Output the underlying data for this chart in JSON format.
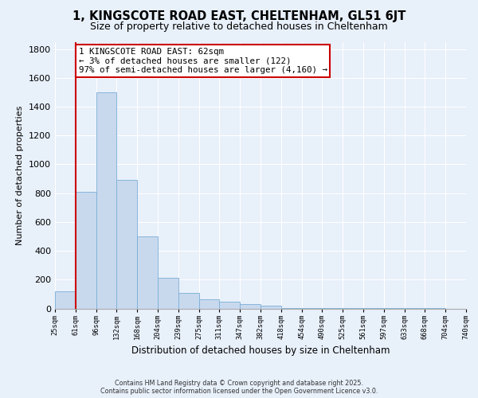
{
  "title": "1, KINGSCOTE ROAD EAST, CHELTENHAM, GL51 6JT",
  "subtitle": "Size of property relative to detached houses in Cheltenham",
  "xlabel": "Distribution of detached houses by size in Cheltenham",
  "ylabel": "Number of detached properties",
  "bar_values": [
    120,
    810,
    1500,
    890,
    500,
    210,
    110,
    65,
    45,
    30,
    20,
    5,
    2,
    1,
    1,
    1,
    1,
    1,
    1,
    0
  ],
  "bin_labels": [
    "25sqm",
    "61sqm",
    "96sqm",
    "132sqm",
    "168sqm",
    "204sqm",
    "239sqm",
    "275sqm",
    "311sqm",
    "347sqm",
    "382sqm",
    "418sqm",
    "454sqm",
    "490sqm",
    "525sqm",
    "561sqm",
    "597sqm",
    "633sqm",
    "668sqm",
    "704sqm",
    "740sqm"
  ],
  "bar_color": "#c8d9ee",
  "bar_edge_color": "#7aaed6",
  "vline_x_index": 1,
  "vline_color": "#cc0000",
  "annotation_line0": "1 KINGSCOTE ROAD EAST: 62sqm",
  "annotation_line1": "← 3% of detached houses are smaller (122)",
  "annotation_line2": "97% of semi-detached houses are larger (4,160) →",
  "annotation_box_color": "#ffffff",
  "annotation_box_edge_color": "#cc0000",
  "ylim": [
    0,
    1850
  ],
  "yticks": [
    0,
    200,
    400,
    600,
    800,
    1000,
    1200,
    1400,
    1600,
    1800
  ],
  "footer_line1": "Contains HM Land Registry data © Crown copyright and database right 2025.",
  "footer_line2": "Contains public sector information licensed under the Open Government Licence v3.0.",
  "bg_color": "#e8f0fa",
  "plot_bg_color": "#e8f0fa",
  "grid_color": "#ffffff",
  "title_fontsize": 10.5,
  "subtitle_fontsize": 9
}
